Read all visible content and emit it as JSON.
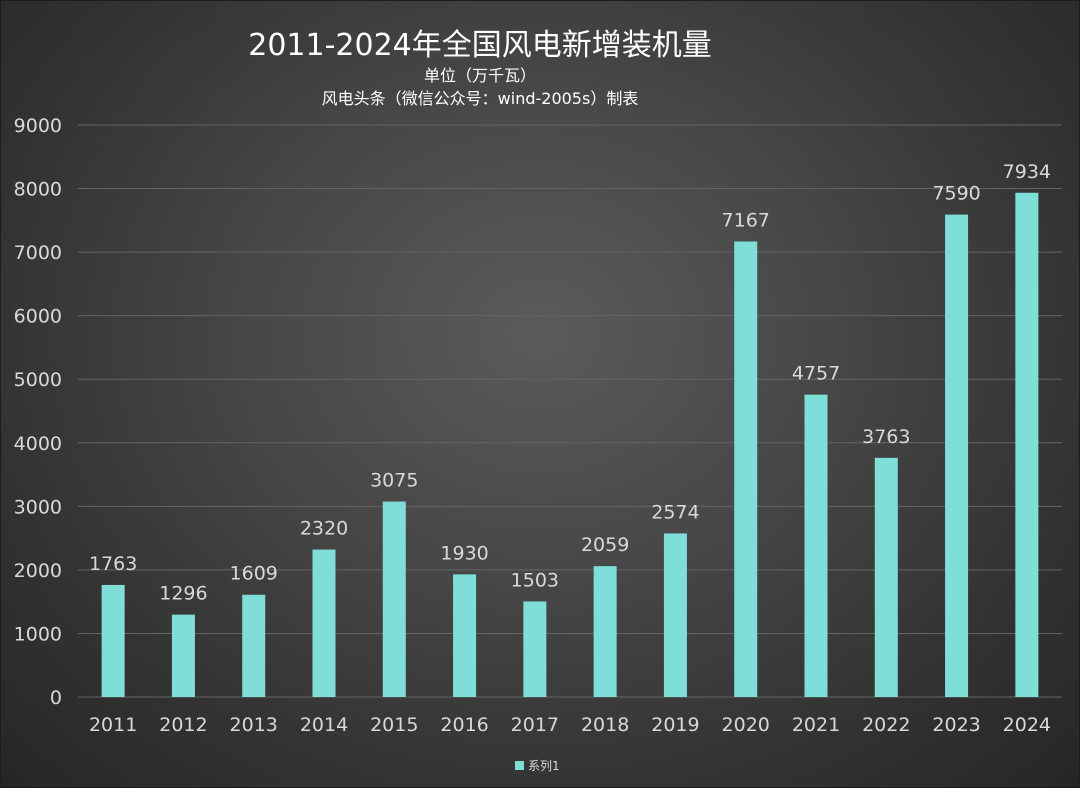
{
  "colors": {
    "bar": "#7fded7",
    "grid": "#646464",
    "axis_text": "#d9d9d9",
    "title": "#ffffff"
  },
  "chart_data": {
    "type": "bar",
    "title": "2011-2024年全国风电新增装机量",
    "subtitle_1": "单位（万千瓦）",
    "subtitle_2": "风电头条（微信公众号：wind-2005s）制表",
    "categories": [
      "2011",
      "2012",
      "2013",
      "2014",
      "2015",
      "2016",
      "2017",
      "2018",
      "2019",
      "2020",
      "2021",
      "2022",
      "2023",
      "2024"
    ],
    "series": [
      {
        "name": "系列1",
        "values": [
          1763,
          1296,
          1609,
          2320,
          3075,
          1930,
          1503,
          2059,
          2574,
          7167,
          4757,
          3763,
          7590,
          7934
        ]
      }
    ],
    "yticks": [
      0,
      1000,
      2000,
      3000,
      4000,
      5000,
      6000,
      7000,
      8000,
      9000
    ],
    "ylim": [
      0,
      9000
    ],
    "grid": true,
    "legend": {
      "position": "bottom",
      "entries": [
        "系列1"
      ]
    },
    "xlabel": "",
    "ylabel": ""
  }
}
